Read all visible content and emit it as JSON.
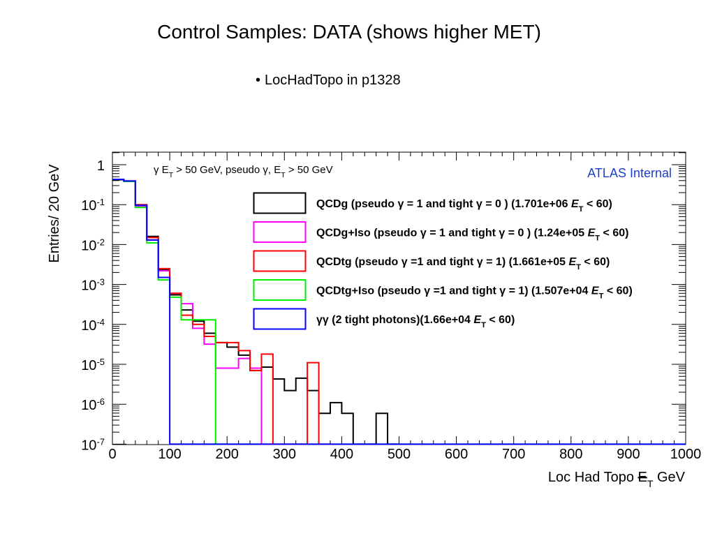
{
  "slide": {
    "title": "Control Samples: DATA (shows higher MET)",
    "bullet_symbol": "•",
    "bullet": "LocHadTopo in p1328"
  },
  "chart_data": {
    "type": "histogram",
    "title": "",
    "cut_text": "γ E_T > 50 GeV, pseudo γ, E_T > 50 GeV",
    "cut_text_parts": [
      "γ E",
      "T",
      " > 50 GeV, pseudo γ, E",
      "T",
      " > 50 GeV"
    ],
    "watermark": "ATLAS Internal",
    "watermark_color": "#1a3fcf",
    "xlabel": "Loc Had Topo  E_T GeV",
    "xlabel_parts": [
      "Loc Had Topo  ",
      "E",
      "T",
      " GeV"
    ],
    "ylabel": "Entries/ 20 GeV",
    "x_range": [
      0,
      1000
    ],
    "y_range": [
      1e-07,
      1.6
    ],
    "y_scale": "log",
    "bin_width": 20,
    "x_ticks": [
      0,
      100,
      200,
      300,
      400,
      500,
      600,
      700,
      800,
      900,
      1000
    ],
    "x_tick_labels": [
      "0",
      "100",
      "200",
      "300",
      "400",
      "500",
      "600",
      "700",
      "800",
      "900",
      "1000"
    ],
    "y_tick_labels": [
      {
        "value": 1,
        "base": "1",
        "exp": ""
      },
      {
        "value": 0.1,
        "base": "10",
        "exp": "-1"
      },
      {
        "value": 0.01,
        "base": "10",
        "exp": "-2"
      },
      {
        "value": 0.001,
        "base": "10",
        "exp": "-3"
      },
      {
        "value": 0.0001,
        "base": "10",
        "exp": "-4"
      },
      {
        "value": 1e-05,
        "base": "10",
        "exp": "-5"
      },
      {
        "value": 1e-06,
        "base": "10",
        "exp": "-6"
      },
      {
        "value": 1e-07,
        "base": "10",
        "exp": "-7"
      }
    ],
    "legend_position": "top-right",
    "series": [
      {
        "name": "QCDg (pseudo γ = 1 and tight γ = 0 ) (1.701e+06  E_T < 60)",
        "label_parts": [
          "QCDg (pseudo γ = 1 and tight γ = 0 ) (1.701e+06  ",
          "E",
          "T",
          " < 60)"
        ],
        "color": "#000000",
        "values": [
          0.42,
          0.39,
          0.098,
          0.016,
          0.0023,
          0.00055,
          0.00023,
          0.00012,
          6e-05,
          3.5e-05,
          2.7e-05,
          1.7e-05,
          7e-06,
          8.5e-06,
          4.3e-06,
          2.2e-06,
          4.5e-06,
          2.2e-06,
          5.9e-07,
          1.1e-06,
          5.9e-07,
          0,
          0,
          5.9e-07,
          0
        ]
      },
      {
        "name": "QCDg+Iso (pseudo γ = 1 and tight γ = 0 ) (1.24e+05  E_T < 60)",
        "label_parts": [
          "QCDg+Iso (pseudo γ = 1 and tight γ = 0 ) (1.24e+05  ",
          "E",
          "T",
          " < 60)"
        ],
        "color": "#ff00ff",
        "values": [
          0.43,
          0.39,
          0.088,
          0.013,
          0.0022,
          0.0006,
          0.00033,
          8e-05,
          3.2e-05,
          8e-06,
          8e-06,
          1.4e-05,
          8e-06,
          0
        ]
      },
      {
        "name": "QCDtg (pseudo γ =1 and tight γ = 1)  (1.661e+05  E_T < 60)",
        "label_parts": [
          "QCDtg (pseudo γ =1 and tight γ = 1)  (1.661e+05  ",
          "E",
          "T",
          " < 60)"
        ],
        "color": "#ff0000",
        "values": [
          0.43,
          0.38,
          0.1,
          0.015,
          0.0025,
          0.0006,
          0.00017,
          0.0001,
          5e-05,
          3.5e-05,
          3.5e-05,
          2.2e-05,
          7e-06,
          1.8e-05,
          0,
          0,
          0,
          1.1e-05,
          0
        ]
      },
      {
        "name": "QCDtg+Iso (pseudo γ =1 and tight γ = 1) (1.507e+04  E_T < 60)",
        "label_parts": [
          "QCDtg+Iso (pseudo γ =1 and tight γ = 1) (1.507e+04  ",
          "E",
          "T",
          " < 60)"
        ],
        "color": "#00ee00",
        "values": [
          0.43,
          0.38,
          0.085,
          0.011,
          0.0013,
          0.00048,
          0.00013,
          0.00013,
          0.00013,
          0
        ]
      },
      {
        "name": "γγ (2 tight photons)(1.66e+04  E_T < 60)",
        "label_parts": [
          "γγ (2 tight photons)(1.66e+04  ",
          "E",
          "T",
          " < 60)"
        ],
        "color": "#0000ff",
        "values": [
          0.43,
          0.39,
          0.096,
          0.013,
          0.0015,
          0
        ]
      }
    ]
  }
}
